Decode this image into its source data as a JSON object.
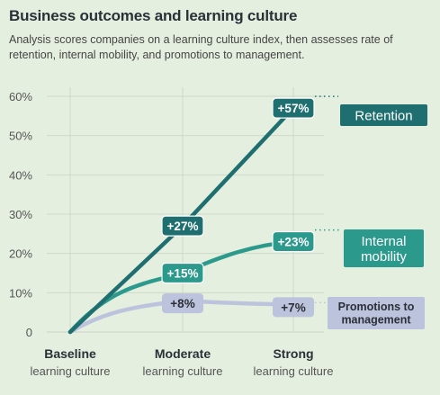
{
  "header": {
    "title": "Business outcomes and learning culture",
    "subtitle": "Analysis scores companies on a learning culture index, then assesses rate of retention, internal mobility, and promotions to management."
  },
  "colors": {
    "background": "#e5efdf",
    "retention": "#1f6f70",
    "internal_mobility": "#2b9a8c",
    "promotions": "#bcc3dc",
    "grid": "#cfd8c9",
    "axis_text": "#555555"
  },
  "chart_data": {
    "type": "line",
    "categories": [
      {
        "line1": "Baseline",
        "line2": "learning culture"
      },
      {
        "line1": "Moderate",
        "line2": "learning culture"
      },
      {
        "line1": "Strong",
        "line2": "learning culture"
      }
    ],
    "y_ticks": [
      "0",
      "10%",
      "20%",
      "30%",
      "40%",
      "50%",
      "60%"
    ],
    "ylim": [
      0,
      60
    ],
    "grid": true,
    "series": [
      {
        "key": "retention",
        "name": "Retention",
        "name_lines": [
          "Retention"
        ],
        "values": [
          0,
          27,
          57
        ],
        "labels": [
          "",
          "+27%",
          "+57%"
        ]
      },
      {
        "key": "internal_mobility",
        "name": "Internal mobility",
        "name_lines": [
          "Internal",
          "mobility"
        ],
        "values": [
          0,
          15,
          23
        ],
        "labels": [
          "",
          "+15%",
          "+23%"
        ]
      },
      {
        "key": "promotions",
        "name": "Promotions to management",
        "name_lines": [
          "Promotions to",
          "management"
        ],
        "values": [
          0,
          8,
          7
        ],
        "labels": [
          "",
          "+8%",
          "+7%"
        ]
      }
    ]
  }
}
